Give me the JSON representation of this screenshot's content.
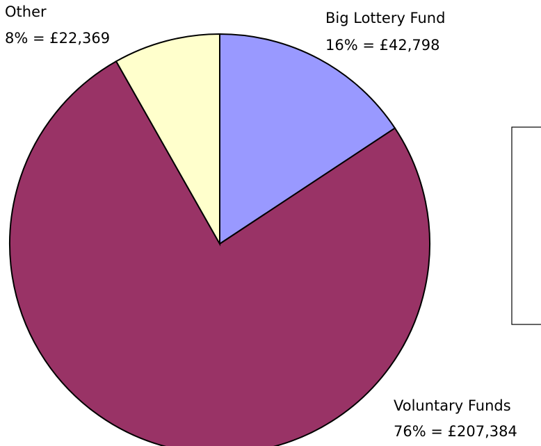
{
  "chart_data": {
    "type": "pie",
    "slices": [
      {
        "name": "Big Lottery Fund",
        "percent": 16,
        "amount": 42798,
        "value_text": "16% = £42,798",
        "color": "#9999FF"
      },
      {
        "name": "Voluntary Funds",
        "percent": 76,
        "amount": 207384,
        "value_text": "76% = £207,384",
        "color": "#993366"
      },
      {
        "name": "Other",
        "percent": 8,
        "amount": 22369,
        "value_text": "8% = £22,369",
        "color": "#FFFFCC"
      }
    ],
    "title": "",
    "start": "12 o'clock",
    "direction": "clockwise",
    "legend": "empty box, right"
  }
}
